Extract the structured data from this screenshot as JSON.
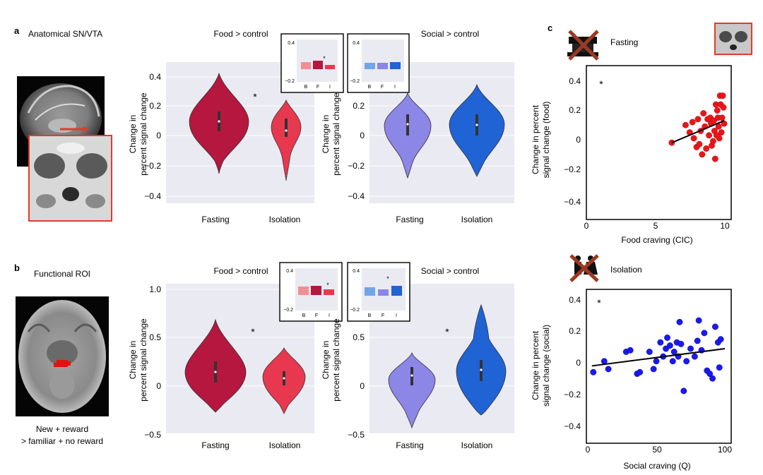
{
  "panel_labels": {
    "a": "a",
    "b": "b",
    "c": "c"
  },
  "panel_a": {
    "heading": "Anatomical SN/VTA",
    "food_title": "Food > control",
    "social_title": "Social > control",
    "ylabel_line1": "Change in",
    "ylabel_line2": "percent signal change",
    "yticks": [
      "0.4",
      "0.2",
      "0",
      "−0.2",
      "−0.4"
    ],
    "xticks": [
      "Fasting",
      "Isolation"
    ],
    "star": "*",
    "inset_food": {
      "yticks": [
        "0.4",
        "−0.2"
      ],
      "xticks": [
        "B",
        "F",
        "I"
      ],
      "star": "*"
    },
    "inset_social": {
      "yticks": [
        "0.4",
        "−0.2"
      ],
      "xticks": [
        "B",
        "F",
        "I"
      ]
    }
  },
  "panel_b": {
    "heading": "Functional ROI",
    "caption_line1": "New + reward",
    "caption_line2": "> familiar + no reward",
    "food_title": "Food > control",
    "social_title": "Social > control",
    "ylabel_line1": "Change in",
    "ylabel_line2": "percent signal change",
    "yticks": [
      "1.0",
      "0.5",
      "0",
      "−0.5"
    ],
    "xticks": [
      "Fasting",
      "Isolation"
    ],
    "star": "*",
    "inset_food": {
      "yticks": [
        "0.4",
        "−0.2"
      ],
      "xticks": [
        "B",
        "F",
        "I"
      ],
      "star": "*"
    },
    "inset_social": {
      "yticks": [
        "0.4",
        "−0.2"
      ],
      "xticks": [
        "B",
        "F",
        "I"
      ],
      "star": "*"
    }
  },
  "panel_c": {
    "fasting_label": "Fasting",
    "isolation_label": "Isolation",
    "top": {
      "ylabel_line1": "Change in percent",
      "ylabel_line2": "signal change (food)",
      "xlabel": "Food craving (CIC)",
      "yticks": [
        "0.4",
        "0.2",
        "0",
        "−0.2",
        "−0.4"
      ],
      "xticks": [
        "0",
        "5",
        "10"
      ],
      "star": "*"
    },
    "bottom": {
      "ylabel_line1": "Change in percent",
      "ylabel_line2": "signal change (social)",
      "xlabel": "Social craving (Q)",
      "yticks": [
        "0.4",
        "0.2",
        "0",
        "−0.2",
        "−0.4"
      ],
      "xticks": [
        "0",
        "50",
        "100"
      ],
      "star": "*"
    }
  },
  "colors": {
    "fasting_food": "#b5173e",
    "isolation_food": "#e8384f",
    "fasting_social": "#8c86e6",
    "isolation_social": "#1f63d4",
    "plot_bg": "#eaeaf2",
    "scatter_red": "#e8161c",
    "scatter_blue": "#1a1aee",
    "roi_box": "#e03c2a"
  },
  "chart_data": [
    {
      "type": "scatter",
      "title": "Fasting",
      "xlabel": "Food craving (CIC)",
      "ylabel": "Change in percent signal change (food)",
      "xlim": [
        0,
        10.5
      ],
      "ylim": [
        -0.48,
        0.48
      ],
      "points": [
        [
          6.2,
          -0.02
        ],
        [
          7.2,
          0.1
        ],
        [
          7.5,
          0.05
        ],
        [
          7.7,
          0.12
        ],
        [
          7.8,
          0.01
        ],
        [
          8.0,
          -0.05
        ],
        [
          8.1,
          0.14
        ],
        [
          8.2,
          -0.03
        ],
        [
          8.3,
          0.06
        ],
        [
          8.4,
          -0.1
        ],
        [
          8.5,
          0.18
        ],
        [
          8.6,
          0.09
        ],
        [
          8.7,
          -0.06
        ],
        [
          8.8,
          0.14
        ],
        [
          8.9,
          0.03
        ],
        [
          9.0,
          0.15
        ],
        [
          9.05,
          0.11
        ],
        [
          9.1,
          -0.04
        ],
        [
          9.2,
          -0.01
        ],
        [
          9.25,
          0.13
        ],
        [
          9.3,
          0.06
        ],
        [
          9.35,
          -0.13
        ],
        [
          9.4,
          0.24
        ],
        [
          9.5,
          0.2
        ],
        [
          9.55,
          0.15
        ],
        [
          9.6,
          0.09
        ],
        [
          9.65,
          0.01
        ],
        [
          9.7,
          0.3
        ],
        [
          9.75,
          0.24
        ],
        [
          9.8,
          0.05
        ],
        [
          9.85,
          0.15
        ],
        [
          9.9,
          0.3
        ],
        [
          9.95,
          0.22
        ],
        [
          10.0,
          0.11
        ],
        [
          9.45,
          0.03
        ]
      ],
      "fit": [
        [
          6.2,
          -0.02
        ],
        [
          10.0,
          0.13
        ]
      ]
    },
    {
      "type": "scatter",
      "title": "Isolation",
      "xlabel": "Social craving (Q)",
      "ylabel": "Change in percent signal change (social)",
      "xlim": [
        0,
        105
      ],
      "ylim": [
        -0.48,
        0.48
      ],
      "points": [
        [
          4,
          -0.06
        ],
        [
          12,
          0.01
        ],
        [
          15,
          -0.04
        ],
        [
          28,
          0.07
        ],
        [
          31,
          0.08
        ],
        [
          36,
          -0.07
        ],
        [
          38,
          -0.06
        ],
        [
          45,
          0.07
        ],
        [
          48,
          -0.04
        ],
        [
          50,
          0.01
        ],
        [
          53,
          0.13
        ],
        [
          55,
          0.04
        ],
        [
          57,
          0.09
        ],
        [
          58,
          0.16
        ],
        [
          60,
          0.11
        ],
        [
          62,
          0.01
        ],
        [
          63,
          0.07
        ],
        [
          65,
          0.13
        ],
        [
          66,
          0.04
        ],
        [
          67,
          0.26
        ],
        [
          68,
          0.12
        ],
        [
          70,
          -0.18
        ],
        [
          72,
          0.01
        ],
        [
          75,
          0.09
        ],
        [
          78,
          0.04
        ],
        [
          80,
          0.14
        ],
        [
          81,
          0.27
        ],
        [
          83,
          0.08
        ],
        [
          85,
          0.19
        ],
        [
          87,
          -0.05
        ],
        [
          89,
          -0.07
        ],
        [
          91,
          -0.1
        ],
        [
          93,
          0.23
        ],
        [
          95,
          0.13
        ],
        [
          96,
          -0.03
        ],
        [
          97,
          0.15
        ]
      ],
      "fit": [
        [
          3,
          -0.02
        ],
        [
          100,
          0.09
        ]
      ]
    }
  ]
}
